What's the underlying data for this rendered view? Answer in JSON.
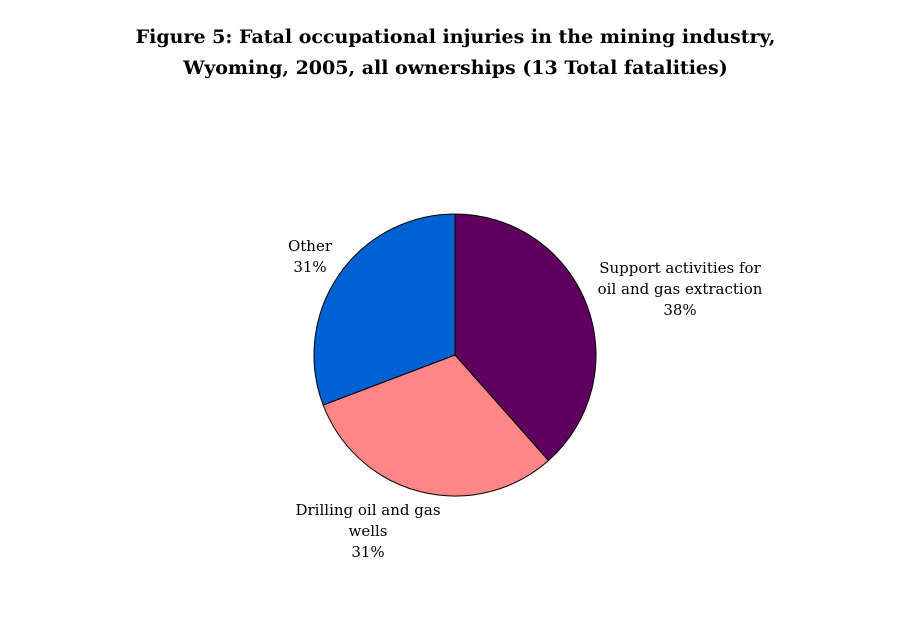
{
  "chart_data": {
    "type": "pie",
    "title_lines": [
      "Figure 5: Fatal occupational injuries in the mining industry,",
      "Wyoming, 2005, all ownerships (13 Total fatalities)"
    ],
    "slices": [
      {
        "label_lines": [
          "Support activities for",
          "oil and gas extraction"
        ],
        "percent_text": "38%",
        "value": 5,
        "color": "#5f005f"
      },
      {
        "label_lines": [
          "Drilling oil and gas",
          "wells"
        ],
        "percent_text": "31%",
        "value": 4,
        "color": "#ff8686"
      },
      {
        "label_lines": [
          "Other"
        ],
        "percent_text": "31%",
        "value": 4,
        "color": "#0062d2"
      }
    ]
  }
}
